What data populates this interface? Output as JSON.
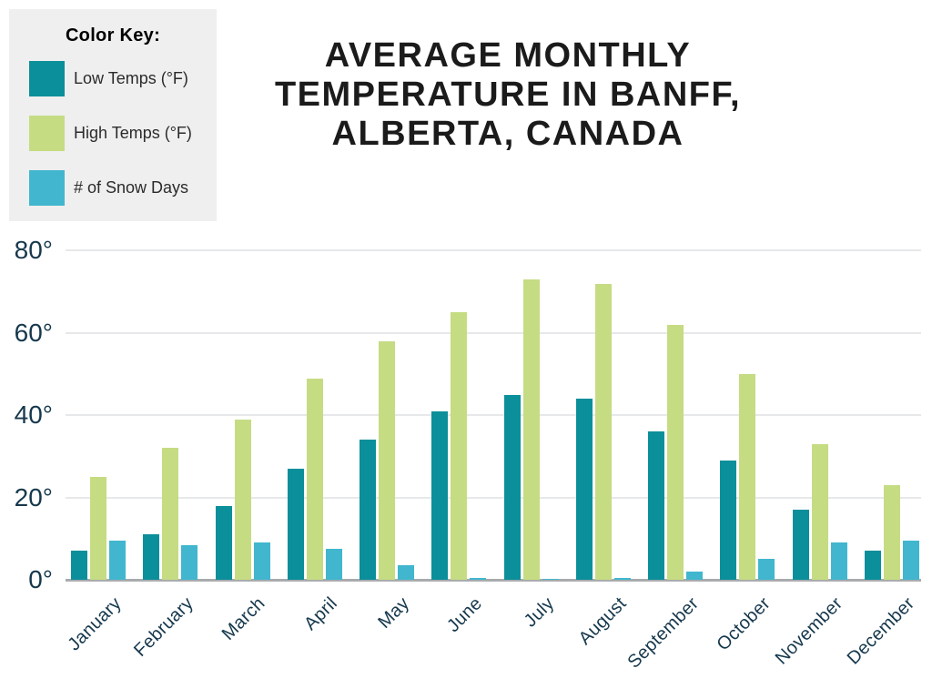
{
  "legend": {
    "title": "Color Key:",
    "background": "#efefef",
    "items": [
      {
        "label": "Low Temps (°F)",
        "color": "#0b8f9a",
        "icon": "teal-swatch"
      },
      {
        "label": "High Temps (°F)",
        "color": "#c5dc83",
        "icon": "green-swatch"
      },
      {
        "label": "# of Snow Days",
        "color": "#41b6ce",
        "icon": "blue-swatch"
      }
    ]
  },
  "title": {
    "line1": "AVERAGE MONTHLY",
    "line2": "TEMPERATURE IN BANFF,",
    "line3": "ALBERTA, CANADA"
  },
  "chart_data": {
    "type": "bar",
    "title": "Average Monthly Temperature in Banff, Alberta, Canada",
    "categories": [
      "January",
      "February",
      "March",
      "April",
      "May",
      "June",
      "July",
      "August",
      "September",
      "October",
      "November",
      "December"
    ],
    "series": [
      {
        "key": "low-temps",
        "name": "Low Temps (°F)",
        "color": "#0b8f9a",
        "values": [
          7,
          11,
          18,
          27,
          34,
          41,
          45,
          44,
          36,
          29,
          17,
          7
        ]
      },
      {
        "key": "high-temps",
        "name": "High Temps (°F)",
        "color": "#c5dc83",
        "values": [
          25,
          32,
          39,
          49,
          58,
          65,
          73,
          72,
          62,
          50,
          33,
          23
        ]
      },
      {
        "key": "snow-days",
        "name": "# of Snow Days",
        "color": "#41b6ce",
        "values": [
          9.5,
          8.5,
          9,
          7.5,
          3.5,
          0.5,
          0.1,
          0.4,
          2,
          5,
          9,
          9.5
        ]
      }
    ],
    "ylim": [
      0,
      80
    ],
    "yticks": [
      {
        "value": 80,
        "label": "80°"
      },
      {
        "value": 60,
        "label": "60°"
      },
      {
        "value": 40,
        "label": "40°"
      },
      {
        "value": 20,
        "label": "20°"
      },
      {
        "value": 0,
        "label": "0°"
      }
    ],
    "grid": true,
    "legend_position": "top-left",
    "colors": {
      "axis_text": "#16384d",
      "gridline": "#e7e8ea",
      "baseline": "#a9abad",
      "title_text": "#1b1b1b"
    }
  }
}
